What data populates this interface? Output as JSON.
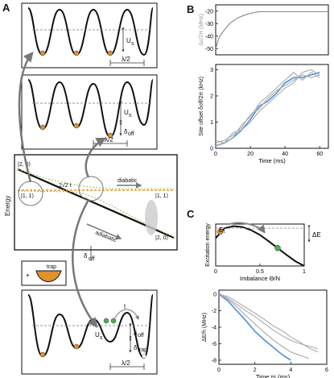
{
  "panels": {
    "a": "A",
    "b": "B",
    "c": "C"
  },
  "panel_a": {
    "us_label": "U",
    "us_sub": "s",
    "lambda_label": "λ/2",
    "delta_off": "δ",
    "off_sub": "off",
    "trap_sub": "trap",
    "t_label": "t",
    "energy_axis": "Energy",
    "state_20": "|2, 0⟩",
    "state_11": "|1, 1⟩",
    "coupling": "2√2 t",
    "diabatic": "diabatic",
    "adiabatic": "adiabatic",
    "trap": "trap",
    "plus": "+"
  },
  "chart_data": [
    {
      "type": "line",
      "panel": "B-top",
      "ylabel": "Δc/2π (MHz)",
      "ylim": [
        -55,
        -15
      ],
      "xlim": [
        0,
        65
      ],
      "yticks": [
        -50,
        -40,
        -30,
        -20
      ],
      "series": [
        {
          "x": [
            0,
            2,
            5,
            8,
            12,
            16,
            20,
            24,
            26,
            65
          ],
          "y": [
            -50,
            -41,
            -35,
            -30,
            -26,
            -23.5,
            -21.8,
            -20.7,
            -20.5,
            -20.5
          ]
        }
      ]
    },
    {
      "type": "line",
      "panel": "B-bottom",
      "xlabel": "Time (ms)",
      "ylabel": "Site offset δoff/2π (kHz)",
      "xlim": [
        0,
        65
      ],
      "ylim": [
        0,
        3.2
      ],
      "xticks": [
        0,
        20,
        40,
        60
      ],
      "yticks": [
        0,
        1,
        2,
        3
      ],
      "series": [
        {
          "color": "#4a90e2",
          "x": [
            0,
            5,
            10,
            15,
            20,
            25,
            30,
            35,
            40,
            45,
            50,
            55,
            60
          ],
          "y": [
            0.1,
            0.2,
            0.4,
            0.7,
            1.1,
            1.6,
            1.8,
            2.1,
            2.5,
            2.7,
            2.7,
            2.8,
            2.9
          ]
        },
        {
          "color": "#aaaaaa",
          "x": [
            0,
            5,
            10,
            15,
            20,
            25,
            30,
            35,
            40,
            45,
            50,
            55,
            60
          ],
          "y": [
            0.2,
            0.3,
            0.5,
            0.8,
            1.3,
            1.5,
            1.9,
            2.2,
            2.4,
            2.6,
            2.8,
            2.7,
            2.8
          ]
        },
        {
          "color": "#aaaaaa",
          "x": [
            0,
            5,
            10,
            15,
            20,
            25,
            30,
            35,
            40,
            45,
            50,
            55,
            60
          ],
          "y": [
            0.1,
            0.2,
            0.4,
            0.9,
            1.2,
            1.7,
            2.0,
            2.3,
            2.6,
            2.9,
            2.6,
            2.9,
            2.7
          ]
        },
        {
          "color": "#aaaaaa",
          "x": [
            0,
            5,
            10,
            15,
            20,
            25,
            30,
            35,
            40,
            45,
            50,
            55,
            60
          ],
          "y": [
            0.3,
            0.2,
            0.6,
            0.7,
            1.0,
            1.4,
            1.7,
            2.0,
            2.3,
            2.5,
            2.9,
            3.0,
            2.8
          ]
        }
      ]
    },
    {
      "type": "line",
      "panel": "C-top",
      "xlabel": "Imbalance Θ/N",
      "ylabel": "Excitation energy",
      "xlim": [
        0,
        1
      ],
      "xticks": [
        0,
        0.5,
        1
      ],
      "y_label_e1": "E₁",
      "delta_e": "ΔE",
      "series": [
        {
          "x": [
            0,
            0.1,
            0.2,
            0.3,
            0.4,
            0.5,
            0.6,
            0.7,
            0.8,
            0.9,
            1.0
          ],
          "y": [
            0.7,
            0.95,
            1.0,
            0.98,
            0.9,
            0.78,
            0.62,
            0.45,
            0.28,
            0.12,
            0.0
          ]
        }
      ]
    },
    {
      "type": "line",
      "panel": "C-bottom",
      "xlabel": "Time τs (ms)",
      "ylabel": "ΔE/h (MHz)",
      "xlim": [
        0,
        6
      ],
      "ylim": [
        -8.5,
        0.5
      ],
      "xticks": [
        0,
        2,
        4,
        6
      ],
      "yticks": [
        0,
        -2,
        -4,
        -6,
        -8
      ],
      "series": [
        {
          "color": "#4a90e2",
          "x": [
            0,
            0.5,
            1,
            1.5,
            2,
            2.5,
            3,
            3.5,
            4
          ],
          "y": [
            0,
            -0.8,
            -2.0,
            -3.2,
            -4.5,
            -5.5,
            -6.4,
            -7.3,
            -8.0
          ]
        },
        {
          "color": "#aaaaaa",
          "x": [
            0,
            0.5,
            1,
            1.5,
            2,
            2.5,
            3,
            3.5,
            4,
            4.5,
            5,
            5.5
          ],
          "y": [
            0,
            -0.5,
            -1.2,
            -2.0,
            -2.7,
            -3.5,
            -4.3,
            -5.0,
            -5.6,
            -6.0,
            -6.3,
            -6.6
          ]
        },
        {
          "color": "#aaaaaa",
          "x": [
            0,
            0.5,
            1,
            1.5,
            2,
            2.5,
            3,
            3.5,
            4,
            4.5,
            5,
            5.5
          ],
          "y": [
            0,
            -0.3,
            -0.9,
            -1.6,
            -2.3,
            -3.0,
            -3.8,
            -4.4,
            -5.2,
            -5.8,
            -6.5,
            -7.0
          ]
        },
        {
          "color": "#aaaaaa",
          "x": [
            0,
            0.5,
            1,
            1.5,
            2,
            2.5,
            3,
            3.5,
            4,
            4.5,
            5
          ],
          "y": [
            0,
            -0.6,
            -1.5,
            -2.6,
            -3.6,
            -4.6,
            -5.5,
            -6.3,
            -7.0,
            -7.4,
            -7.8
          ]
        }
      ]
    }
  ]
}
